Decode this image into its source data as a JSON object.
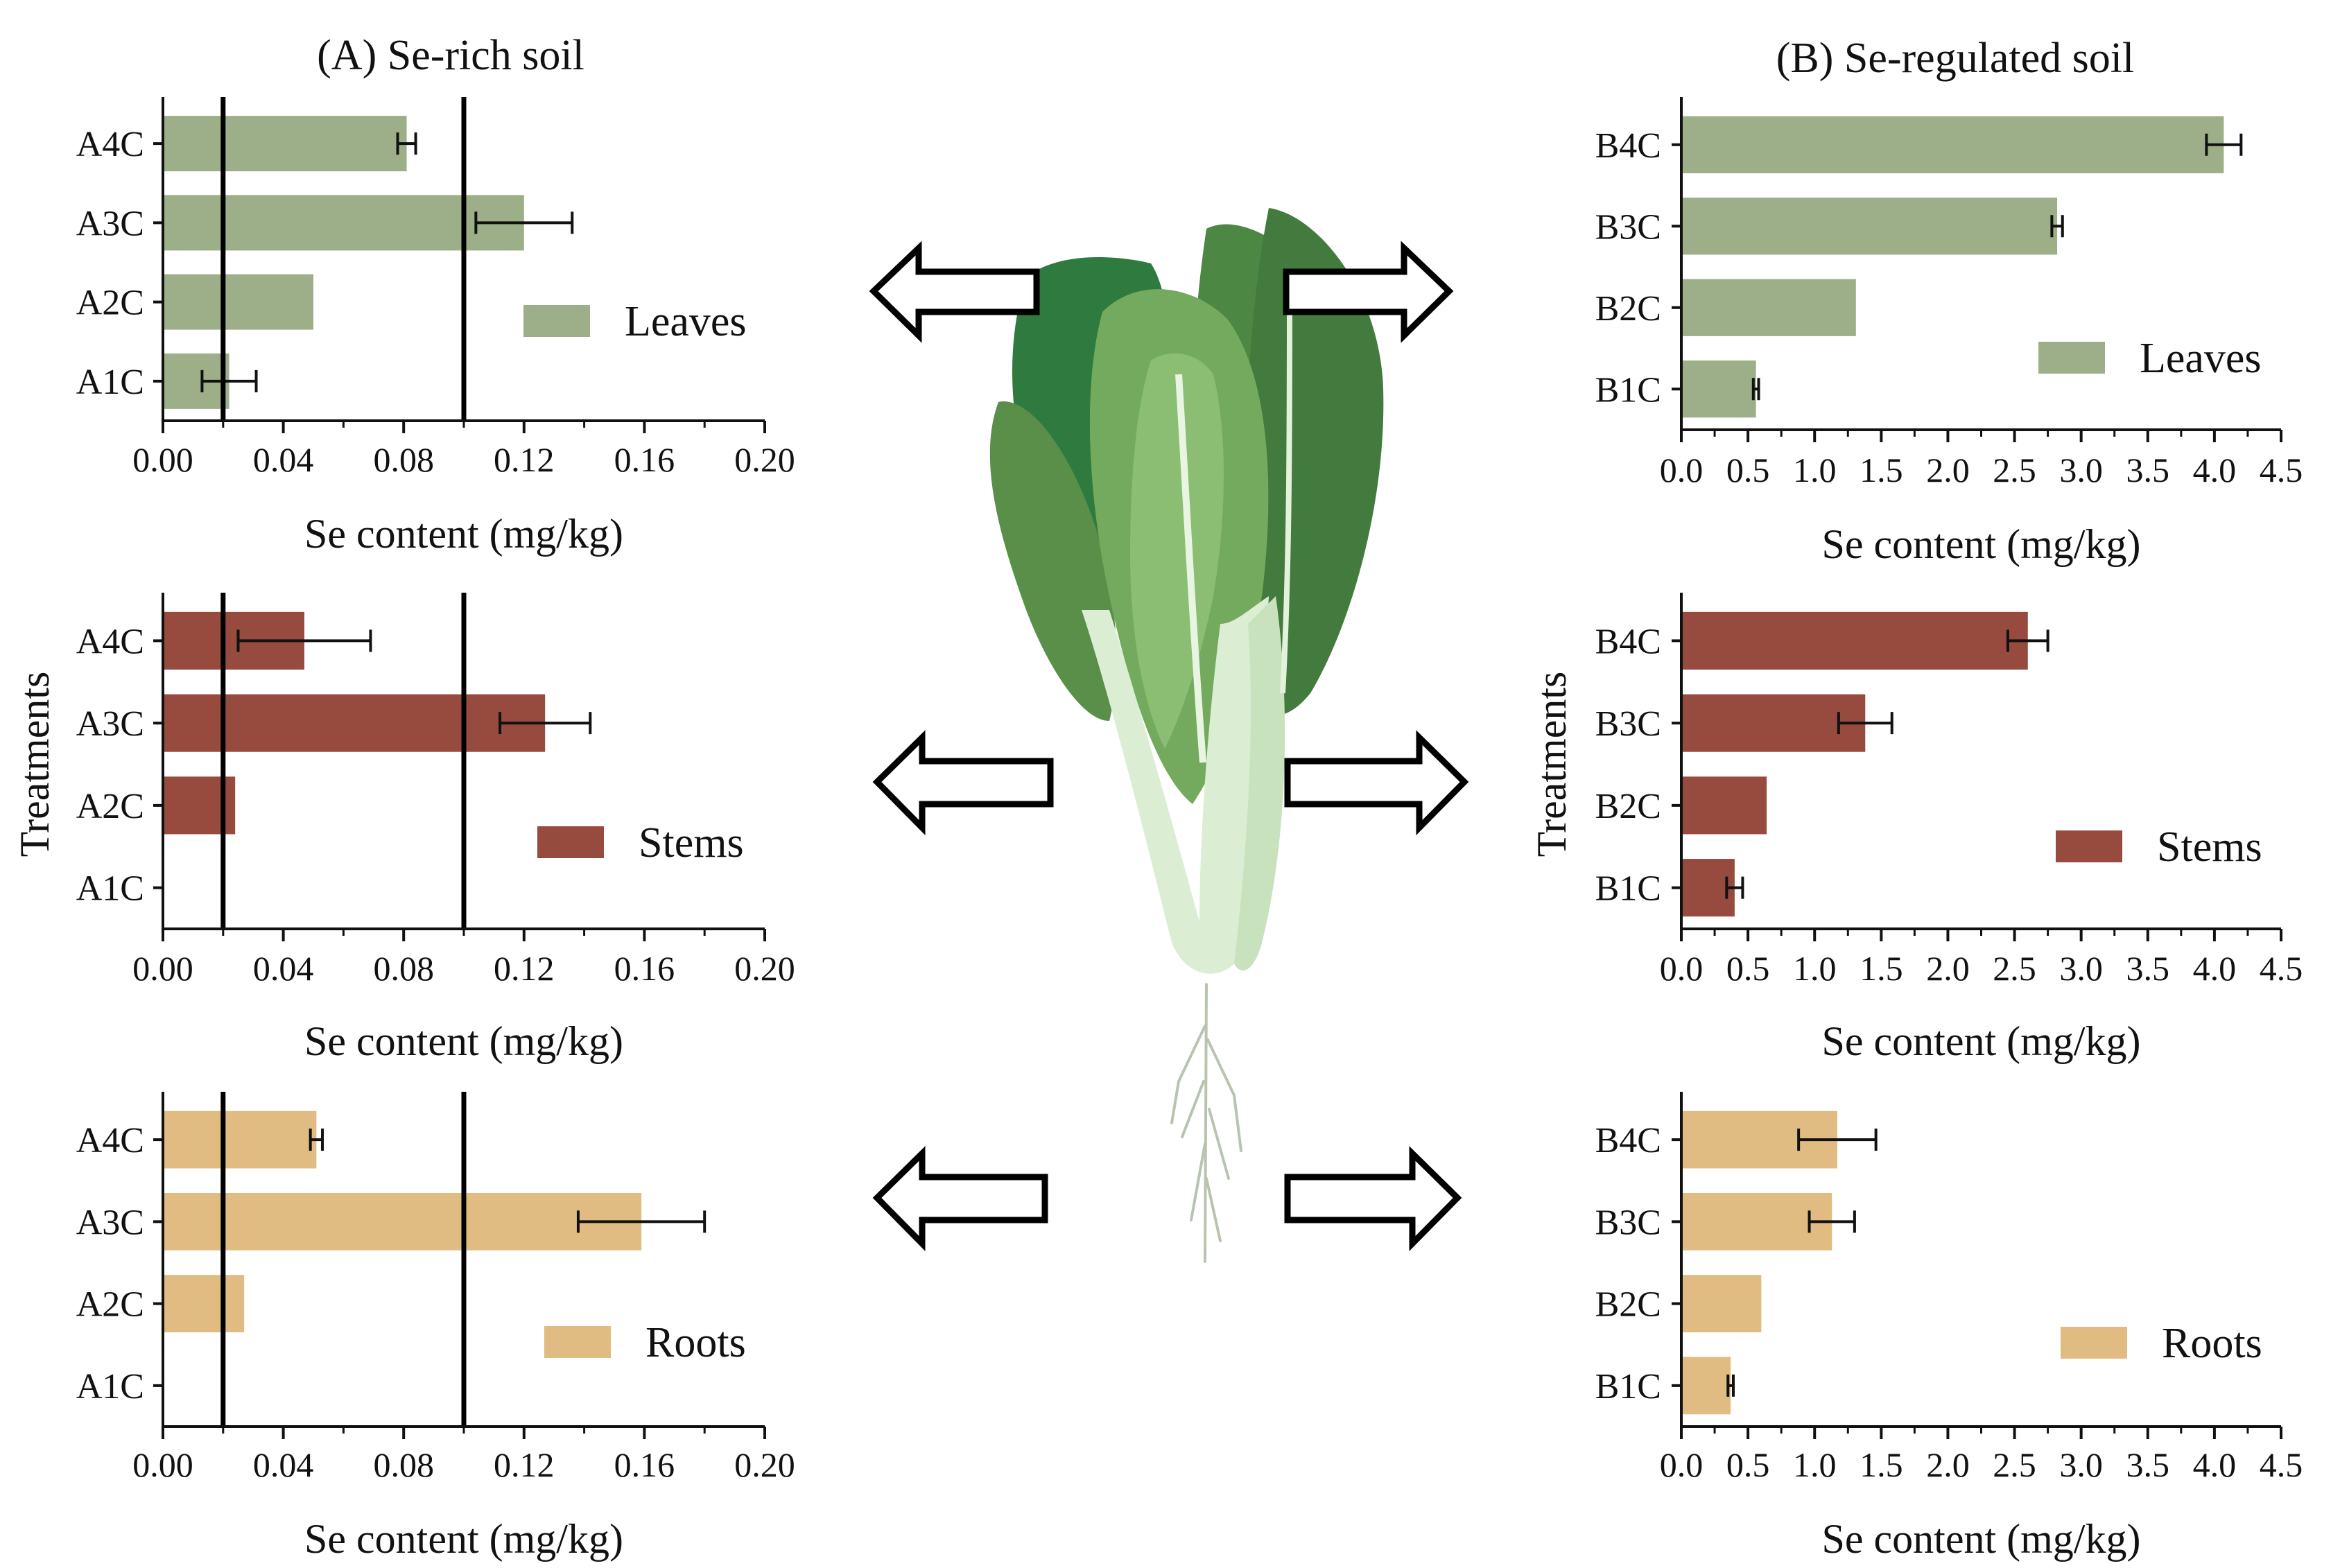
{
  "panels": {
    "A": {
      "title": "(A) Se-rich soil"
    },
    "B": {
      "title": "(B) Se-regulated soil"
    }
  },
  "chart_data": [
    {
      "id": "A-leaves",
      "type": "bar",
      "orientation": "horizontal",
      "categories": [
        "A4C",
        "A3C",
        "A2C",
        "A1C"
      ],
      "values": [
        0.081,
        0.12,
        0.05,
        0.022
      ],
      "errors": [
        0.003,
        0.016,
        0,
        0.009
      ],
      "series": [
        {
          "name": "Leaves",
          "values": [
            0.081,
            0.12,
            0.05,
            0.022
          ]
        }
      ],
      "color": "#9caf88",
      "xlabel": "Se content (mg/kg)",
      "ylabel": "",
      "xlim": [
        0,
        0.2
      ],
      "ticks": [
        "0.00",
        "0.04",
        "0.08",
        "0.12",
        "0.16",
        "0.20"
      ],
      "ref_lines": [
        0.02,
        0.1
      ],
      "legend": "right"
    },
    {
      "id": "A-stems",
      "type": "bar",
      "orientation": "horizontal",
      "categories": [
        "A4C",
        "A3C",
        "A2C",
        "A1C"
      ],
      "values": [
        0.047,
        0.127,
        0.024,
        0
      ],
      "errors": [
        0.022,
        0.015,
        0,
        0
      ],
      "series": [
        {
          "name": "Stems",
          "values": [
            0.047,
            0.127,
            0.024,
            0
          ]
        }
      ],
      "color": "#974b3f",
      "xlabel": "Se content (mg/kg)",
      "ylabel": "Treatments",
      "xlim": [
        0,
        0.2
      ],
      "ticks": [
        "0.00",
        "0.04",
        "0.08",
        "0.12",
        "0.16",
        "0.20"
      ],
      "ref_lines": [
        0.02,
        0.1
      ],
      "legend": "right"
    },
    {
      "id": "A-roots",
      "type": "bar",
      "orientation": "horizontal",
      "categories": [
        "A4C",
        "A3C",
        "A2C",
        "A1C"
      ],
      "values": [
        0.051,
        0.159,
        0.027,
        0
      ],
      "errors": [
        0.002,
        0.021,
        0,
        0
      ],
      "series": [
        {
          "name": "Roots",
          "values": [
            0.051,
            0.159,
            0.027,
            0
          ]
        }
      ],
      "color": "#e0bc82",
      "xlabel": "Se content (mg/kg)",
      "ylabel": "",
      "xlim": [
        0,
        0.2
      ],
      "ticks": [
        "0.00",
        "0.04",
        "0.08",
        "0.12",
        "0.16",
        "0.20"
      ],
      "ref_lines": [
        0.02,
        0.1
      ],
      "legend": "right"
    },
    {
      "id": "B-leaves",
      "type": "bar",
      "orientation": "horizontal",
      "categories": [
        "B4C",
        "B3C",
        "B2C",
        "B1C"
      ],
      "values": [
        4.07,
        2.82,
        1.31,
        0.56
      ],
      "errors": [
        0.13,
        0.04,
        0,
        0.02
      ],
      "series": [
        {
          "name": "Leaves",
          "values": [
            4.07,
            2.82,
            1.31,
            0.56
          ]
        }
      ],
      "color": "#9caf88",
      "xlabel": "Se content (mg/kg)",
      "ylabel": "",
      "xlim": [
        0,
        4.5
      ],
      "ticks": [
        "0.0",
        "0.5",
        "1.0",
        "1.5",
        "2.0",
        "2.5",
        "3.0",
        "3.5",
        "4.0",
        "4.5"
      ],
      "ref_lines": [],
      "legend": "right"
    },
    {
      "id": "B-stems",
      "type": "bar",
      "orientation": "horizontal",
      "categories": [
        "B4C",
        "B3C",
        "B2C",
        "B1C"
      ],
      "values": [
        2.6,
        1.38,
        0.64,
        0.4
      ],
      "errors": [
        0.15,
        0.2,
        0,
        0.06
      ],
      "series": [
        {
          "name": "Stems",
          "values": [
            2.6,
            1.38,
            0.64,
            0.4
          ]
        }
      ],
      "color": "#974b3f",
      "xlabel": "Se content (mg/kg)",
      "ylabel": "Treatments",
      "xlim": [
        0,
        4.5
      ],
      "ticks": [
        "0.0",
        "0.5",
        "1.0",
        "1.5",
        "2.0",
        "2.5",
        "3.0",
        "3.5",
        "4.0",
        "4.5"
      ],
      "ref_lines": [],
      "legend": "right"
    },
    {
      "id": "B-roots",
      "type": "bar",
      "orientation": "horizontal",
      "categories": [
        "B4C",
        "B3C",
        "B2C",
        "B1C"
      ],
      "values": [
        1.17,
        1.13,
        0.6,
        0.37
      ],
      "errors": [
        0.29,
        0.17,
        0,
        0.02
      ],
      "series": [
        {
          "name": "Roots",
          "values": [
            1.17,
            1.13,
            0.6,
            0.37
          ]
        }
      ],
      "color": "#e0bc82",
      "xlabel": "Se content (mg/kg)",
      "ylabel": "",
      "xlim": [
        0,
        4.5
      ],
      "ticks": [
        "0.0",
        "0.5",
        "1.0",
        "1.5",
        "2.0",
        "2.5",
        "3.0",
        "3.5",
        "4.0",
        "4.5"
      ],
      "ref_lines": [],
      "legend": "right"
    }
  ],
  "illustration": {
    "icon": "bok-choy-icon",
    "arrows": "outward-arrow-icon"
  }
}
